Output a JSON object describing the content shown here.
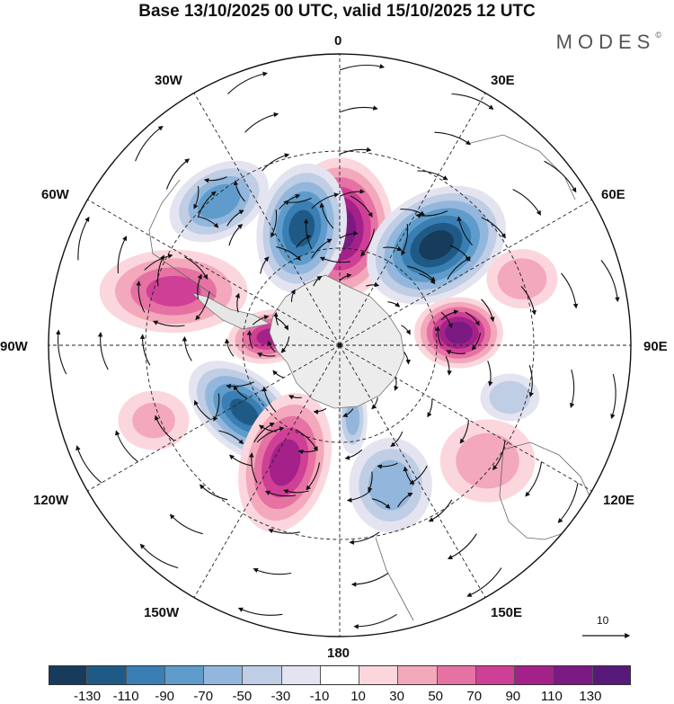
{
  "title": "Base 13/10/2025 00 UTC, valid 15/10/2025 12 UTC",
  "brand": "MODES",
  "brand_mark": "©",
  "longitude_labels": {
    "lon_0": "0",
    "lon_30e": "30E",
    "lon_60e": "60E",
    "lon_90e": "90E",
    "lon_120e": "120E",
    "lon_150e": "150E",
    "lon_180": "180",
    "lon_150w": "150W",
    "lon_120w": "120W",
    "lon_90w": "90W",
    "lon_60w": "60W",
    "lon_30w": "30W"
  },
  "reference_vector": {
    "label": "10"
  },
  "colorbar": {
    "colors": [
      "#173b5a",
      "#1f5a86",
      "#3a7fb3",
      "#5f9ccb",
      "#93b7dc",
      "#bfcde5",
      "#e4e4f0",
      "#ffffff",
      "#fbd7dd",
      "#f3a8bb",
      "#e672a3",
      "#cf3f96",
      "#a4218a",
      "#7b1a82",
      "#581a78"
    ],
    "ticks": [
      "-130",
      "-110",
      "-90",
      "-70",
      "-50",
      "-30",
      "-10",
      "10",
      "30",
      "50",
      "70",
      "90",
      "110",
      "130"
    ]
  },
  "anomaly_centers": [
    {
      "lon_deg": 0,
      "colat_deg": 36,
      "value": 120,
      "sx": 18,
      "sy": 24,
      "rot": 0
    },
    {
      "lon_deg": 44,
      "colat_deg": 43,
      "value": -135,
      "sx": 25,
      "sy": 18,
      "rot": -30
    },
    {
      "lon_deg": 84,
      "colat_deg": 37,
      "value": 120,
      "sx": 15,
      "sy": 12,
      "rot": 0
    },
    {
      "lon_deg": -18,
      "colat_deg": 38,
      "value": -115,
      "sx": 15,
      "sy": 22,
      "rot": 10
    },
    {
      "lon_deg": -40,
      "colat_deg": 58,
      "value": -80,
      "sx": 18,
      "sy": 12,
      "rot": -30
    },
    {
      "lon_deg": -72,
      "colat_deg": 54,
      "value": 70,
      "sx": 25,
      "sy": 14,
      "rot": 0
    },
    {
      "lon_deg": -83,
      "colat_deg": 22,
      "value": 90,
      "sx": 14,
      "sy": 9,
      "rot": -10
    },
    {
      "lon_deg": -125,
      "colat_deg": 36,
      "value": -110,
      "sx": 22,
      "sy": 13,
      "rot": 40
    },
    {
      "lon_deg": -155,
      "colat_deg": 40,
      "value": 95,
      "sx": 15,
      "sy": 24,
      "rot": 15
    },
    {
      "lon_deg": 160,
      "colat_deg": 46,
      "value": -60,
      "sx": 14,
      "sy": 16,
      "rot": 0
    },
    {
      "lon_deg": 170,
      "colat_deg": 23,
      "value": -50,
      "sx": 5,
      "sy": 12,
      "rot": 0
    },
    {
      "lon_deg": 128,
      "colat_deg": 58,
      "value": 35,
      "sx": 16,
      "sy": 14,
      "rot": 0
    },
    {
      "lon_deg": 107,
      "colat_deg": 55,
      "value": -40,
      "sx": 10,
      "sy": 8,
      "rot": 0
    },
    {
      "lon_deg": 70,
      "colat_deg": 60,
      "value": 40,
      "sx": 12,
      "sy": 10,
      "rot": 0
    },
    {
      "lon_deg": -112,
      "colat_deg": 62,
      "value": 25,
      "sx": 12,
      "sy": 10,
      "rot": 0
    }
  ]
}
